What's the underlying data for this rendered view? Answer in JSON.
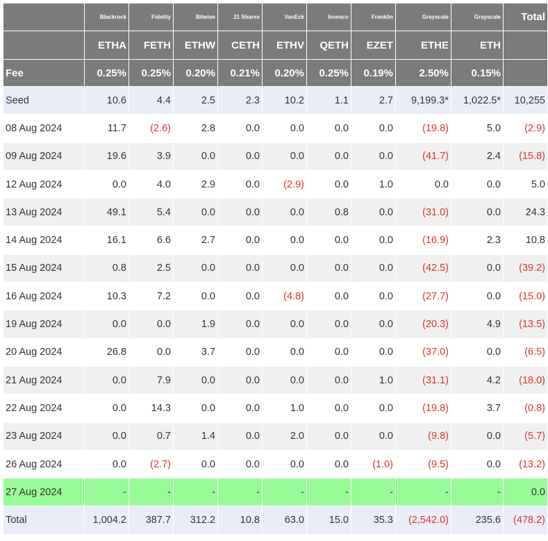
{
  "table": {
    "issuers": [
      "Blackrock",
      "Fidelity",
      "Bitwise",
      "21 Shares",
      "VanEck",
      "Invesco",
      "Franklin",
      "Grayscale",
      "Grayscale"
    ],
    "total_label": "Total",
    "tickers": [
      "ETHA",
      "FETH",
      "ETHW",
      "CETH",
      "ETHV",
      "QETH",
      "EZET",
      "ETHE",
      "ETH"
    ],
    "fee_label": "Fee",
    "fees": [
      "0.25%",
      "0.25%",
      "0.20%",
      "0.21%",
      "0.20%",
      "0.25%",
      "0.19%",
      "2.50%",
      "0.15%"
    ],
    "rows": [
      {
        "label": "Seed",
        "values": [
          "10.6",
          "4.4",
          "2.5",
          "2.3",
          "10.2",
          "1.1",
          "2.7",
          "9,199.3*",
          "1,022.5*",
          "10,255"
        ]
      },
      {
        "label": "08 Aug 2024",
        "values": [
          "11.7",
          "(2.6)",
          "2.8",
          "0.0",
          "0.0",
          "0.0",
          "0.0",
          "(19.8)",
          "5.0",
          "(2.9)"
        ]
      },
      {
        "label": "09 Aug 2024",
        "values": [
          "19.6",
          "3.9",
          "0.0",
          "0.0",
          "0.0",
          "0.0",
          "0.0",
          "(41.7)",
          "2.4",
          "(15.8)"
        ]
      },
      {
        "label": "12 Aug 2024",
        "values": [
          "0.0",
          "4.0",
          "2.9",
          "0.0",
          "(2.9)",
          "0.0",
          "1.0",
          "0.0",
          "0.0",
          "5.0"
        ]
      },
      {
        "label": "13 Aug 2024",
        "values": [
          "49.1",
          "5.4",
          "0.0",
          "0.0",
          "0.0",
          "0.8",
          "0.0",
          "(31.0)",
          "0.0",
          "24.3"
        ]
      },
      {
        "label": "14 Aug 2024",
        "values": [
          "16.1",
          "6.6",
          "2.7",
          "0.0",
          "0.0",
          "0.0",
          "0.0",
          "(16.9)",
          "2.3",
          "10.8"
        ]
      },
      {
        "label": "15 Aug 2024",
        "values": [
          "0.8",
          "2.5",
          "0.0",
          "0.0",
          "0.0",
          "0.0",
          "0.0",
          "(42.5)",
          "0.0",
          "(39.2)"
        ]
      },
      {
        "label": "16 Aug 2024",
        "values": [
          "10.3",
          "7.2",
          "0.0",
          "0.0",
          "(4.8)",
          "0.0",
          "0.0",
          "(27.7)",
          "0.0",
          "(15.0)"
        ]
      },
      {
        "label": "19 Aug 2024",
        "values": [
          "0.0",
          "0.0",
          "1.9",
          "0.0",
          "0.0",
          "0.0",
          "0.0",
          "(20.3)",
          "4.9",
          "(13.5)"
        ]
      },
      {
        "label": "20 Aug 2024",
        "values": [
          "26.8",
          "0.0",
          "3.7",
          "0.0",
          "0.0",
          "0.0",
          "0.0",
          "(37.0)",
          "0.0",
          "(6.5)"
        ]
      },
      {
        "label": "21 Aug 2024",
        "values": [
          "0.0",
          "7.9",
          "0.0",
          "0.0",
          "0.0",
          "0.0",
          "1.0",
          "(31.1)",
          "4.2",
          "(18.0)"
        ]
      },
      {
        "label": "22 Aug 2024",
        "values": [
          "0.0",
          "14.3",
          "0.0",
          "0.0",
          "1.0",
          "0.0",
          "0.0",
          "(19.8)",
          "3.7",
          "(0.8)"
        ]
      },
      {
        "label": "23 Aug 2024",
        "values": [
          "0.0",
          "0.7",
          "1.4",
          "0.0",
          "2.0",
          "0.0",
          "0.0",
          "(9.8)",
          "0.0",
          "(5.7)"
        ]
      },
      {
        "label": "26 Aug 2024",
        "values": [
          "0.0",
          "(2.7)",
          "0.0",
          "0.0",
          "0.0",
          "0.0",
          "(1.0)",
          "(9.5)",
          "0.0",
          "(13.2)"
        ]
      },
      {
        "label": "27 Aug 2024",
        "values": [
          "-",
          "-",
          "-",
          "-",
          "-",
          "-",
          "-",
          "-",
          "-",
          "0.0"
        ]
      },
      {
        "label": "Total",
        "values": [
          "1,004.2",
          "387.7",
          "312.2",
          "10.8",
          "63.0",
          "15.0",
          "35.3",
          "(2,542.0)",
          "235.6",
          "(478.2)"
        ]
      }
    ]
  },
  "colors": {
    "header_bg": "#7b7b7b",
    "seed_total_bg": "#e8edf8",
    "alt_row_bg": "#f0f0f0",
    "highlight_row_bg": "#98fb98",
    "negative_text": "#e0342b"
  }
}
